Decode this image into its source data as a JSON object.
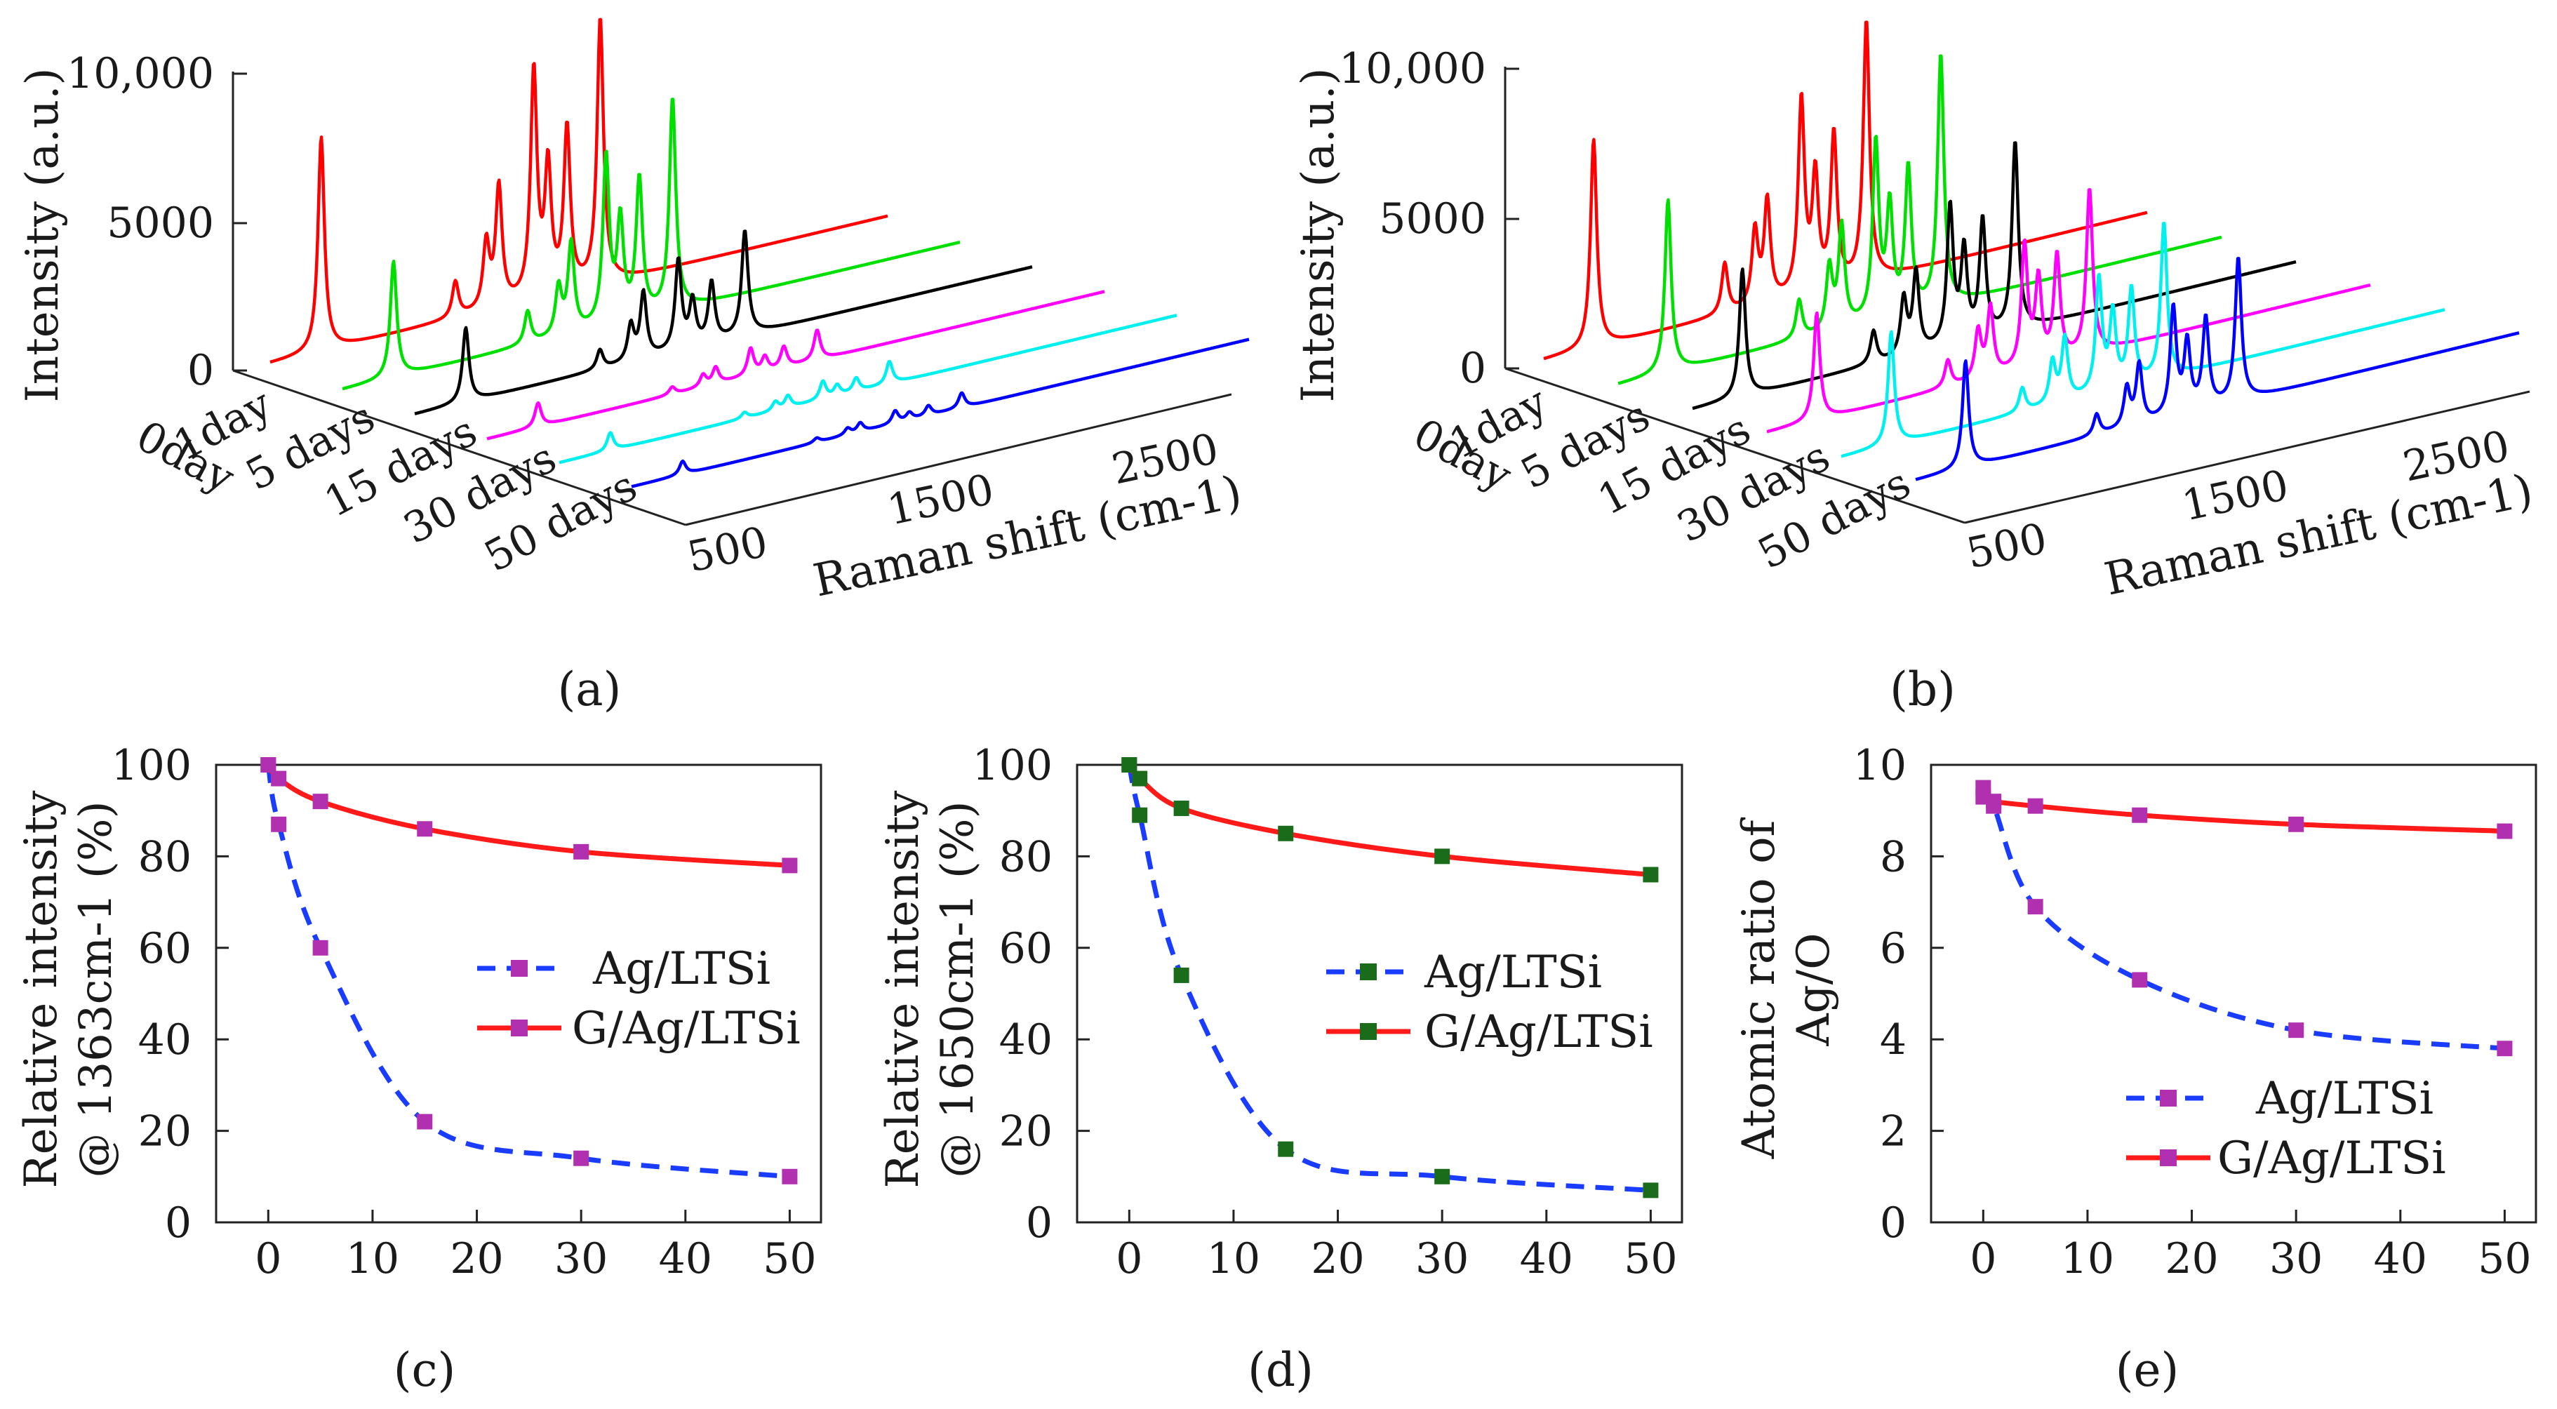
{
  "chart_data": [
    {
      "panel_label": "(a)",
      "type": "line",
      "title": "",
      "xlabel": "Raman shift (cm-1)",
      "ylabel": "Intensity (a.u.)",
      "zlabel": "",
      "x_ticks": [
        "500",
        "1500",
        "2500"
      ],
      "y_ticks": [
        "0",
        "5000",
        "10,000"
      ],
      "series_ticks": [
        "0day",
        "1day",
        "5 days",
        "15 days",
        "30 days",
        "50 days"
      ],
      "xlim": [
        400,
        3000
      ],
      "ylim": [
        0,
        10000
      ],
      "series": [
        {
          "name": "0day",
          "color": "#ff0000",
          "baseline": 400,
          "peaks": [
            [
              615,
              7200
            ],
            [
              1180,
              1200
            ],
            [
              1310,
              2200
            ],
            [
              1363,
              4000
            ],
            [
              1510,
              7600
            ],
            [
              1570,
              4200
            ],
            [
              1650,
              5400
            ],
            [
              1790,
              8900
            ]
          ]
        },
        {
          "name": "1day",
          "color": "#00e000",
          "baseline": 300,
          "peaks": [
            [
              615,
              3900
            ],
            [
              1180,
              1100
            ],
            [
              1310,
              1600
            ],
            [
              1363,
              3000
            ],
            [
              1510,
              5600
            ],
            [
              1570,
              3300
            ],
            [
              1650,
              4600
            ],
            [
              1790,
              7100
            ]
          ]
        },
        {
          "name": "5 days",
          "color": "#000000",
          "baseline": 250,
          "peaks": [
            [
              615,
              2500
            ],
            [
              1180,
              650
            ],
            [
              1310,
              1200
            ],
            [
              1363,
              2200
            ],
            [
              1510,
              3000
            ],
            [
              1570,
              1500
            ],
            [
              1650,
              2000
            ],
            [
              1790,
              3500
            ]
          ]
        },
        {
          "name": "15 days",
          "color": "#ff00ff",
          "baseline": 200,
          "peaks": [
            [
              615,
              800
            ],
            [
              1180,
              250
            ],
            [
              1310,
              400
            ],
            [
              1363,
              550
            ],
            [
              1510,
              900
            ],
            [
              1570,
              500
            ],
            [
              1650,
              700
            ],
            [
              1790,
              1000
            ]
          ]
        },
        {
          "name": "30 days",
          "color": "#00f0f0",
          "baseline": 180,
          "peaks": [
            [
              615,
              600
            ],
            [
              1180,
              200
            ],
            [
              1310,
              300
            ],
            [
              1363,
              400
            ],
            [
              1510,
              600
            ],
            [
              1570,
              350
            ],
            [
              1650,
              450
            ],
            [
              1790,
              750
            ]
          ]
        },
        {
          "name": "50 days",
          "color": "#0000ff",
          "baseline": 150,
          "peaks": [
            [
              615,
              450
            ],
            [
              1180,
              150
            ],
            [
              1310,
              220
            ],
            [
              1363,
              300
            ],
            [
              1510,
              420
            ],
            [
              1570,
              250
            ],
            [
              1650,
              330
            ],
            [
              1790,
              500
            ]
          ]
        }
      ]
    },
    {
      "panel_label": "(b)",
      "type": "line",
      "title": "",
      "xlabel": "Raman shift (cm-1)",
      "ylabel": "Intensity (a.u.)",
      "zlabel": "",
      "x_ticks": [
        "500",
        "1500",
        "2500"
      ],
      "y_ticks": [
        "0",
        "5000",
        "10,000"
      ],
      "series_ticks": [
        "0day",
        "1day",
        "5 days",
        "15 days",
        "30 days",
        "50 days"
      ],
      "xlim": [
        400,
        3000
      ],
      "ylim": [
        0,
        10000
      ],
      "series": [
        {
          "name": "0day",
          "color": "#ff0000",
          "baseline": 400,
          "peaks": [
            [
              615,
              7000
            ],
            [
              1180,
              1700
            ],
            [
              1310,
              2500
            ],
            [
              1363,
              3400
            ],
            [
              1510,
              6500
            ],
            [
              1570,
              3800
            ],
            [
              1650,
              5100
            ],
            [
              1790,
              8700
            ]
          ]
        },
        {
          "name": "1day",
          "color": "#00e000",
          "baseline": 350,
          "peaks": [
            [
              615,
              5800
            ],
            [
              1180,
              1300
            ],
            [
              1310,
              2100
            ],
            [
              1363,
              3400
            ],
            [
              1510,
              5900
            ],
            [
              1570,
              3600
            ],
            [
              1650,
              4800
            ],
            [
              1790,
              8400
            ]
          ]
        },
        {
          "name": "5 days",
          "color": "#000000",
          "baseline": 300,
          "peaks": [
            [
              615,
              4300
            ],
            [
              1180,
              1100
            ],
            [
              1310,
              1900
            ],
            [
              1363,
              2700
            ],
            [
              1510,
              4600
            ],
            [
              1570,
              3000
            ],
            [
              1650,
              3900
            ],
            [
              1790,
              6300
            ]
          ]
        },
        {
          "name": "15 days",
          "color": "#ff00ff",
          "baseline": 300,
          "peaks": [
            [
              615,
              3600
            ],
            [
              1180,
              900
            ],
            [
              1310,
              1600
            ],
            [
              1363,
              2300
            ],
            [
              1510,
              4100
            ],
            [
              1570,
              2800
            ],
            [
              1650,
              3500
            ],
            [
              1790,
              5500
            ]
          ]
        },
        {
          "name": "30 days",
          "color": "#00f0f0",
          "baseline": 250,
          "peaks": [
            [
              615,
              3800
            ],
            [
              1180,
              800
            ],
            [
              1310,
              1400
            ],
            [
              1363,
              2100
            ],
            [
              1510,
              3800
            ],
            [
              1570,
              2500
            ],
            [
              1650,
              3200
            ],
            [
              1790,
              5200
            ]
          ]
        },
        {
          "name": "50 days",
          "color": "#0000ff",
          "baseline": 250,
          "peaks": [
            [
              615,
              3600
            ],
            [
              1180,
              700
            ],
            [
              1310,
              1300
            ],
            [
              1363,
              2000
            ],
            [
              1510,
              3600
            ],
            [
              1570,
              2300
            ],
            [
              1650,
              3000
            ],
            [
              1790,
              4800
            ]
          ]
        }
      ]
    },
    {
      "panel_label": "(c)",
      "type": "line",
      "title": "",
      "xlabel": "",
      "ylabel_line1": "Relative intensity",
      "ylabel_line2": "@ 1363cm-1 (%)",
      "x_ticks": [
        "0",
        "10",
        "20",
        "30",
        "40",
        "50"
      ],
      "y_ticks": [
        "0",
        "20",
        "40",
        "60",
        "80",
        "100"
      ],
      "xlim": [
        -5,
        53
      ],
      "ylim": [
        0,
        100
      ],
      "legend_location": "center-right",
      "series": [
        {
          "name": "Ag/LTSi",
          "color": "#1a3cff",
          "marker_color": "#b030b0",
          "style": "dashed",
          "x": [
            0,
            1,
            5,
            15,
            30,
            50
          ],
          "y": [
            100,
            87,
            60,
            22,
            14,
            10
          ]
        },
        {
          "name": "G/Ag/LTSi",
          "color": "#ff1a1a",
          "marker_color": "#b030b0",
          "style": "solid",
          "x": [
            0,
            1,
            5,
            15,
            30,
            50
          ],
          "y": [
            100,
            97,
            92,
            86,
            81,
            78
          ]
        }
      ]
    },
    {
      "panel_label": "(d)",
      "type": "line",
      "title": "",
      "xlabel": "",
      "ylabel_line1": "Relative intensity",
      "ylabel_line2": "@ 1650cm-1 (%)",
      "x_ticks": [
        "0",
        "10",
        "20",
        "30",
        "40",
        "50"
      ],
      "y_ticks": [
        "0",
        "20",
        "40",
        "60",
        "80",
        "100"
      ],
      "xlim": [
        -5,
        53
      ],
      "ylim": [
        0,
        100
      ],
      "legend_location": "center-right",
      "series": [
        {
          "name": "Ag/LTSi",
          "color": "#1a3cff",
          "marker_color": "#1a6b1a",
          "style": "dashed",
          "x": [
            0,
            1,
            5,
            15,
            30,
            50
          ],
          "y": [
            100,
            89,
            54,
            16,
            10,
            7
          ]
        },
        {
          "name": "G/Ag/LTSi",
          "color": "#ff1a1a",
          "marker_color": "#1a6b1a",
          "style": "solid",
          "x": [
            0,
            1,
            5,
            15,
            30,
            50
          ],
          "y": [
            100,
            97,
            90.5,
            85,
            80,
            76
          ]
        }
      ]
    },
    {
      "panel_label": "(e)",
      "type": "line",
      "title": "",
      "xlabel": "",
      "ylabel_line1": "Atomic ratio of",
      "ylabel_line2": "Ag/O",
      "x_ticks": [
        "0",
        "10",
        "20",
        "30",
        "40",
        "50"
      ],
      "y_ticks": [
        "0",
        "2",
        "4",
        "6",
        "8",
        "10"
      ],
      "xlim": [
        -5,
        53
      ],
      "ylim": [
        0,
        10
      ],
      "legend_location": "lower-right",
      "series": [
        {
          "name": "Ag/LTSi",
          "color": "#1a3cff",
          "marker_color": "#b030b0",
          "style": "dashed",
          "x": [
            0,
            1,
            5,
            15,
            30,
            50
          ],
          "y": [
            9.5,
            9.1,
            6.9,
            5.3,
            4.2,
            3.8
          ]
        },
        {
          "name": "G/Ag/LTSi",
          "color": "#ff1a1a",
          "marker_color": "#b030b0",
          "style": "solid",
          "x": [
            0,
            1,
            5,
            15,
            30,
            50
          ],
          "y": [
            9.3,
            9.2,
            9.1,
            8.9,
            8.7,
            8.55
          ]
        }
      ]
    }
  ]
}
